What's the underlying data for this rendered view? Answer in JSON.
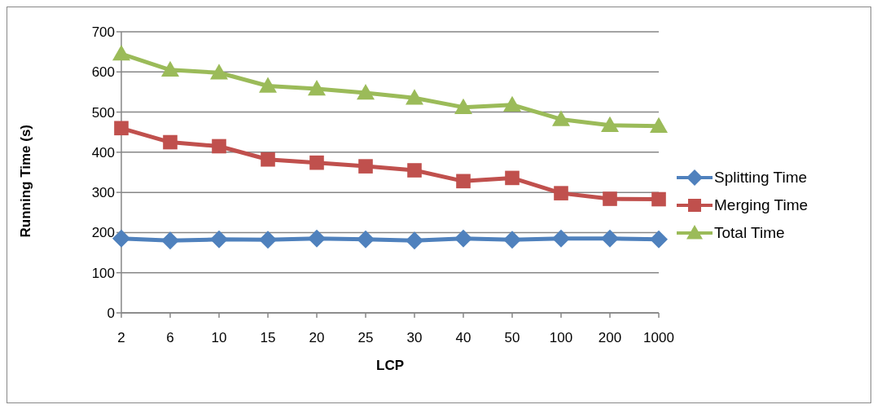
{
  "chart_data": {
    "type": "line",
    "xlabel": "LCP",
    "ylabel": "Running Time (s)",
    "categories": [
      "2",
      "6",
      "10",
      "15",
      "20",
      "25",
      "30",
      "40",
      "50",
      "100",
      "200",
      "1000"
    ],
    "series": [
      {
        "name": "Splitting Time",
        "color": "#4f81bd",
        "marker": "diamond",
        "values": [
          185,
          180,
          183,
          182,
          185,
          183,
          180,
          185,
          182,
          185,
          185,
          183
        ]
      },
      {
        "name": "Merging Time",
        "color": "#c0504d",
        "marker": "square",
        "values": [
          460,
          425,
          415,
          382,
          374,
          365,
          355,
          328,
          336,
          298,
          284,
          283
        ]
      },
      {
        "name": "Total Time",
        "color": "#9bbb59",
        "marker": "triangle",
        "values": [
          645,
          605,
          598,
          565,
          558,
          548,
          535,
          512,
          518,
          482,
          467,
          465
        ]
      }
    ],
    "ylim": [
      0,
      700
    ],
    "yticks": [
      0,
      100,
      200,
      300,
      400,
      500,
      600,
      700
    ],
    "grid": "y",
    "legend": "right"
  }
}
